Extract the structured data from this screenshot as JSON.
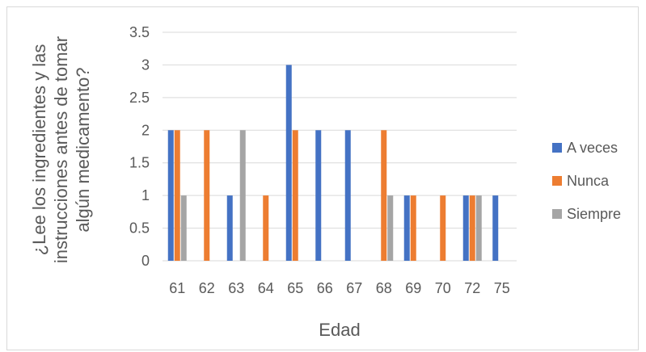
{
  "chart_data": {
    "type": "bar",
    "title": "",
    "xlabel": "Edad",
    "ylabel": "¿Lee los ingredientes y las instrucciones antes de tomar algún medicamento?",
    "ylabel_lines": [
      "¿Lee los ingredientes y las",
      "instrucciones antes de tomar",
      "algún medicamento?"
    ],
    "categories": [
      "61",
      "62",
      "63",
      "64",
      "65",
      "66",
      "67",
      "68",
      "69",
      "70",
      "72",
      "75"
    ],
    "ylim": [
      0,
      3.5
    ],
    "yticks": [
      "0",
      "0.5",
      "1",
      "1.5",
      "2",
      "2.5",
      "3",
      "3.5"
    ],
    "grid": true,
    "legend_position": "right",
    "series": [
      {
        "name": "A veces",
        "color": "#4472c4",
        "values": [
          2,
          0,
          1,
          0,
          3,
          2,
          2,
          0,
          1,
          0,
          1,
          1
        ]
      },
      {
        "name": "Nunca",
        "color": "#ed7d31",
        "values": [
          2,
          2,
          0,
          1,
          2,
          0,
          0,
          2,
          1,
          1,
          1,
          0
        ]
      },
      {
        "name": "Siempre",
        "color": "#a5a5a5",
        "values": [
          1,
          0,
          2,
          0,
          0,
          0,
          0,
          1,
          0,
          0,
          1,
          0
        ]
      }
    ]
  }
}
